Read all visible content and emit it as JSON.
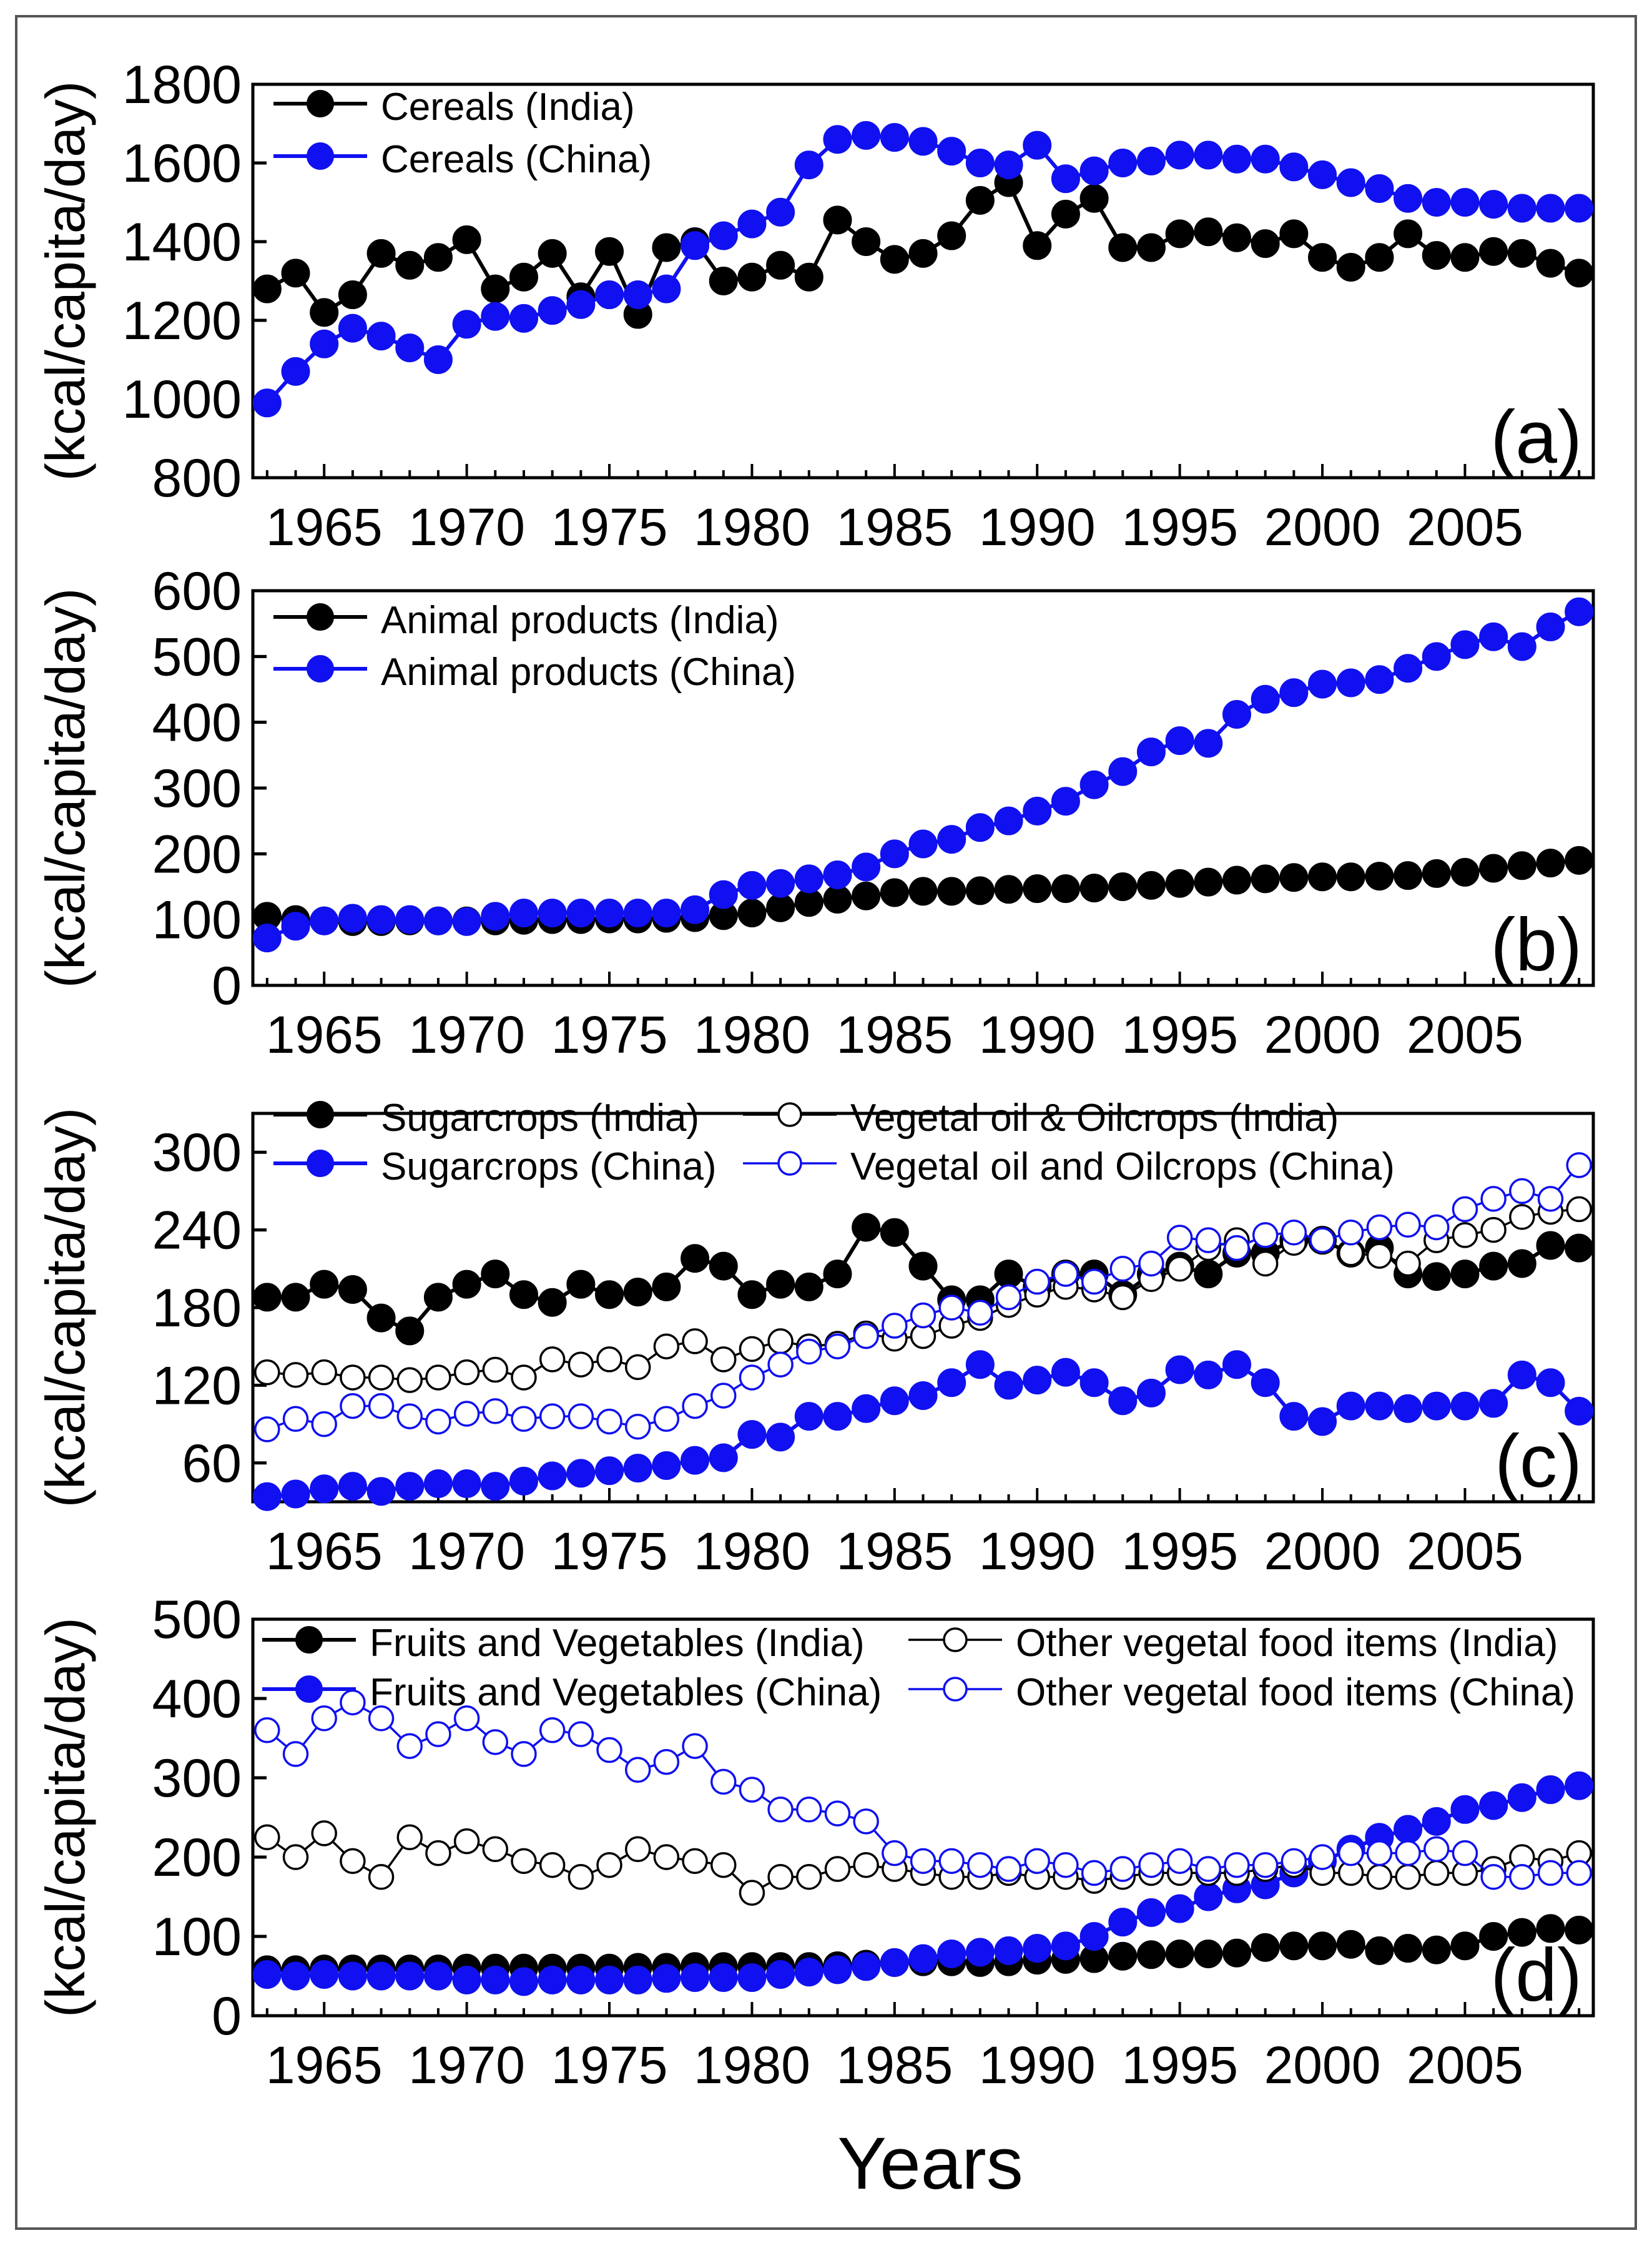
{
  "figure": {
    "xlabel": "Years",
    "colors": {
      "india": "#000000",
      "china": "#1010f0",
      "axis": "#000000",
      "border": "#555555"
    }
  },
  "chart_data": [
    {
      "type": "line",
      "panel_label": "(a)",
      "ylabel": "(kcal/capita/day)",
      "xlim": [
        1962.5,
        2009.5
      ],
      "ylim": [
        800,
        1800
      ],
      "yticks": [
        800,
        1000,
        1200,
        1400,
        1600,
        1800
      ],
      "xticks": [
        1965,
        1970,
        1975,
        1980,
        1985,
        1990,
        1995,
        2000,
        2005
      ],
      "xticklabels": [
        "1965",
        "1970",
        "1975",
        "1980",
        "1985",
        "1990",
        "1995",
        "2000",
        "2005"
      ],
      "legend_position": "top-left",
      "x": [
        1963,
        1964,
        1965,
        1966,
        1967,
        1968,
        1969,
        1970,
        1971,
        1972,
        1973,
        1974,
        1975,
        1976,
        1977,
        1978,
        1979,
        1980,
        1981,
        1982,
        1983,
        1984,
        1985,
        1986,
        1987,
        1988,
        1989,
        1990,
        1991,
        1992,
        1993,
        1994,
        1995,
        1996,
        1997,
        1998,
        1999,
        2000,
        2001,
        2002,
        2003,
        2004,
        2005,
        2006,
        2007,
        2008,
        2009
      ],
      "series": [
        {
          "name": "Cereals (India)",
          "color_key": "india",
          "filled": true,
          "values": [
            1280,
            1320,
            1220,
            1265,
            1370,
            1340,
            1360,
            1405,
            1280,
            1310,
            1370,
            1260,
            1375,
            1215,
            1385,
            1400,
            1300,
            1310,
            1340,
            1310,
            1455,
            1400,
            1355,
            1370,
            1415,
            1505,
            1550,
            1390,
            1470,
            1510,
            1385,
            1385,
            1420,
            1425,
            1410,
            1395,
            1420,
            1360,
            1335,
            1360,
            1420,
            1365,
            1360,
            1375,
            1370,
            1345,
            1320
          ]
        },
        {
          "name": "Cereals (China)",
          "color_key": "china",
          "filled": true,
          "values": [
            990,
            1070,
            1140,
            1180,
            1160,
            1130,
            1100,
            1190,
            1210,
            1205,
            1225,
            1240,
            1265,
            1265,
            1280,
            1390,
            1415,
            1445,
            1475,
            1595,
            1660,
            1670,
            1665,
            1655,
            1630,
            1600,
            1595,
            1645,
            1560,
            1580,
            1600,
            1605,
            1620,
            1620,
            1610,
            1610,
            1590,
            1570,
            1550,
            1535,
            1510,
            1500,
            1500,
            1495,
            1485,
            1485,
            1485
          ]
        }
      ]
    },
    {
      "type": "line",
      "panel_label": "(b)",
      "ylabel": "(kcal/capita/day)",
      "xlim": [
        1962.5,
        2009.5
      ],
      "ylim": [
        0,
        600
      ],
      "yticks": [
        0,
        100,
        200,
        300,
        400,
        500,
        600
      ],
      "xticks": [
        1965,
        1970,
        1975,
        1980,
        1985,
        1990,
        1995,
        2000,
        2005
      ],
      "xticklabels": [
        "1965",
        "1970",
        "1975",
        "1980",
        "1985",
        "1990",
        "1995",
        "2000",
        "2005"
      ],
      "legend_position": "top-left",
      "x": [
        1963,
        1964,
        1965,
        1966,
        1967,
        1968,
        1969,
        1970,
        1971,
        1972,
        1973,
        1974,
        1975,
        1976,
        1977,
        1978,
        1979,
        1980,
        1981,
        1982,
        1983,
        1984,
        1985,
        1986,
        1987,
        1988,
        1989,
        1990,
        1991,
        1992,
        1993,
        1994,
        1995,
        1996,
        1997,
        1998,
        1999,
        2000,
        2001,
        2002,
        2003,
        2004,
        2005,
        2006,
        2007,
        2008,
        2009
      ],
      "series": [
        {
          "name": "Animal products (India)",
          "color_key": "india",
          "filled": true,
          "values": [
            105,
            100,
            98,
            97,
            97,
            98,
            98,
            98,
            98,
            99,
            100,
            100,
            101,
            101,
            102,
            103,
            106,
            110,
            118,
            126,
            131,
            136,
            141,
            143,
            143,
            144,
            146,
            147,
            147,
            148,
            150,
            152,
            155,
            157,
            160,
            162,
            164,
            165,
            165,
            166,
            167,
            170,
            172,
            178,
            182,
            186,
            190
          ]
        },
        {
          "name": "Animal products (China)",
          "color_key": "china",
          "filled": true,
          "values": [
            72,
            90,
            98,
            102,
            100,
            100,
            98,
            97,
            105,
            110,
            110,
            110,
            110,
            110,
            110,
            115,
            138,
            152,
            155,
            162,
            168,
            180,
            200,
            215,
            222,
            240,
            250,
            265,
            280,
            305,
            325,
            355,
            372,
            368,
            412,
            435,
            445,
            458,
            460,
            465,
            482,
            500,
            518,
            530,
            515,
            545,
            568
          ]
        }
      ]
    },
    {
      "type": "line",
      "panel_label": "(c)",
      "ylabel": "(kcal/capita/day)",
      "xlim": [
        1962.5,
        2009.5
      ],
      "ylim": [
        30,
        330
      ],
      "yticks": [
        60,
        120,
        180,
        240,
        300
      ],
      "xticks": [
        1965,
        1970,
        1975,
        1980,
        1985,
        1990,
        1995,
        2000,
        2005
      ],
      "xticklabels": [
        "1965",
        "1970",
        "1975",
        "1980",
        "1985",
        "1990",
        "1995",
        "2000",
        "2005"
      ],
      "legend_position": "top",
      "x": [
        1963,
        1964,
        1965,
        1966,
        1967,
        1968,
        1969,
        1970,
        1971,
        1972,
        1973,
        1974,
        1975,
        1976,
        1977,
        1978,
        1979,
        1980,
        1981,
        1982,
        1983,
        1984,
        1985,
        1986,
        1987,
        1988,
        1989,
        1990,
        1991,
        1992,
        1993,
        1994,
        1995,
        1996,
        1997,
        1998,
        1999,
        2000,
        2001,
        2002,
        2003,
        2004,
        2005,
        2006,
        2007,
        2008,
        2009
      ],
      "series": [
        {
          "name": "Sugarcrops (India)",
          "color_key": "india",
          "filled": true,
          "values": [
            188,
            188,
            198,
            194,
            172,
            162,
            188,
            198,
            206,
            190,
            184,
            198,
            190,
            192,
            196,
            218,
            212,
            190,
            198,
            196,
            206,
            242,
            238,
            212,
            186,
            186,
            206,
            196,
            206,
            206,
            190,
            206,
            212,
            206,
            222,
            222,
            232,
            232,
            222,
            226,
            206,
            204,
            206,
            212,
            214,
            228,
            226
          ]
        },
        {
          "name": "Sugarcrops (China)",
          "color_key": "china",
          "filled": true,
          "values": [
            34,
            36,
            40,
            42,
            38,
            42,
            44,
            44,
            42,
            46,
            50,
            52,
            54,
            56,
            58,
            62,
            64,
            82,
            80,
            96,
            96,
            102,
            108,
            112,
            122,
            136,
            120,
            124,
            130,
            122,
            108,
            114,
            132,
            128,
            136,
            122,
            96,
            92,
            104,
            104,
            102,
            104,
            104,
            106,
            128,
            122,
            100
          ]
        },
        {
          "name": "Vegetal oil & Oilcrops (India)",
          "color_key": "india",
          "filled": false,
          "values": [
            130,
            128,
            130,
            126,
            126,
            124,
            126,
            130,
            132,
            126,
            140,
            136,
            140,
            134,
            150,
            154,
            140,
            148,
            154,
            150,
            152,
            160,
            156,
            158,
            166,
            172,
            182,
            190,
            196,
            194,
            188,
            202,
            210,
            226,
            232,
            214,
            230,
            232,
            222,
            220,
            214,
            232,
            236,
            240,
            250,
            254,
            256
          ]
        },
        {
          "name": "Vegetal oil and Oilcrops (China)",
          "color_key": "china",
          "filled": false,
          "values": [
            86,
            94,
            90,
            104,
            104,
            96,
            92,
            98,
            100,
            94,
            96,
            96,
            92,
            88,
            94,
            104,
            112,
            126,
            136,
            146,
            150,
            158,
            166,
            174,
            180,
            176,
            188,
            200,
            206,
            200,
            210,
            214,
            234,
            232,
            226,
            236,
            238,
            232,
            238,
            242,
            244,
            242,
            256,
            264,
            270,
            264,
            290
          ]
        }
      ]
    },
    {
      "type": "line",
      "panel_label": "(d)",
      "ylabel": "(kcal/capita/day)",
      "xlim": [
        1962.5,
        2009.5
      ],
      "ylim": [
        0,
        500
      ],
      "yticks": [
        0,
        100,
        200,
        300,
        400,
        500
      ],
      "xticks": [
        1965,
        1970,
        1975,
        1980,
        1985,
        1990,
        1995,
        2000,
        2005
      ],
      "xticklabels": [
        "1965",
        "1970",
        "1975",
        "1980",
        "1985",
        "1990",
        "1995",
        "2000",
        "2005"
      ],
      "legend_position": "top",
      "x": [
        1963,
        1964,
        1965,
        1966,
        1967,
        1968,
        1969,
        1970,
        1971,
        1972,
        1973,
        1974,
        1975,
        1976,
        1977,
        1978,
        1979,
        1980,
        1981,
        1982,
        1983,
        1984,
        1985,
        1986,
        1987,
        1988,
        1989,
        1990,
        1991,
        1992,
        1993,
        1994,
        1995,
        1996,
        1997,
        1998,
        1999,
        2000,
        2001,
        2002,
        2003,
        2004,
        2005,
        2006,
        2007,
        2008,
        2009
      ],
      "series": [
        {
          "name": "Fruits and Vegetables (India)",
          "color_key": "india",
          "filled": true,
          "values": [
            58,
            58,
            59,
            59,
            59,
            59,
            59,
            60,
            60,
            60,
            60,
            60,
            60,
            61,
            61,
            62,
            62,
            62,
            62,
            62,
            63,
            65,
            67,
            68,
            68,
            67,
            68,
            70,
            71,
            72,
            75,
            77,
            78,
            78,
            79,
            86,
            88,
            88,
            90,
            82,
            85,
            83,
            88,
            100,
            105,
            110,
            108
          ]
        },
        {
          "name": "Fruits and Vegetables (China)",
          "color_key": "china",
          "filled": true,
          "values": [
            52,
            50,
            52,
            50,
            50,
            50,
            50,
            45,
            45,
            43,
            45,
            45,
            45,
            45,
            47,
            48,
            48,
            48,
            52,
            55,
            58,
            62,
            67,
            72,
            78,
            80,
            82,
            85,
            88,
            100,
            118,
            130,
            135,
            150,
            160,
            165,
            180,
            195,
            210,
            225,
            235,
            245,
            260,
            265,
            275,
            285,
            290
          ]
        },
        {
          "name": "Other vegetal food items (India)",
          "color_key": "india",
          "filled": false,
          "values": [
            225,
            200,
            230,
            195,
            175,
            225,
            205,
            220,
            210,
            195,
            190,
            175,
            190,
            210,
            200,
            195,
            190,
            155,
            175,
            175,
            185,
            190,
            185,
            180,
            175,
            175,
            180,
            175,
            175,
            170,
            175,
            180,
            180,
            180,
            180,
            185,
            190,
            180,
            180,
            175,
            175,
            180,
            180,
            185,
            200,
            195,
            205
          ]
        },
        {
          "name": "Other vegetal food items (China)",
          "color_key": "china",
          "filled": false,
          "values": [
            360,
            330,
            375,
            395,
            375,
            340,
            355,
            375,
            345,
            330,
            360,
            355,
            335,
            310,
            320,
            340,
            295,
            285,
            260,
            260,
            255,
            245,
            205,
            195,
            195,
            190,
            185,
            195,
            190,
            180,
            185,
            190,
            195,
            185,
            190,
            190,
            195,
            200,
            205,
            205,
            205,
            210,
            205,
            175,
            175,
            180,
            180
          ]
        }
      ]
    }
  ]
}
